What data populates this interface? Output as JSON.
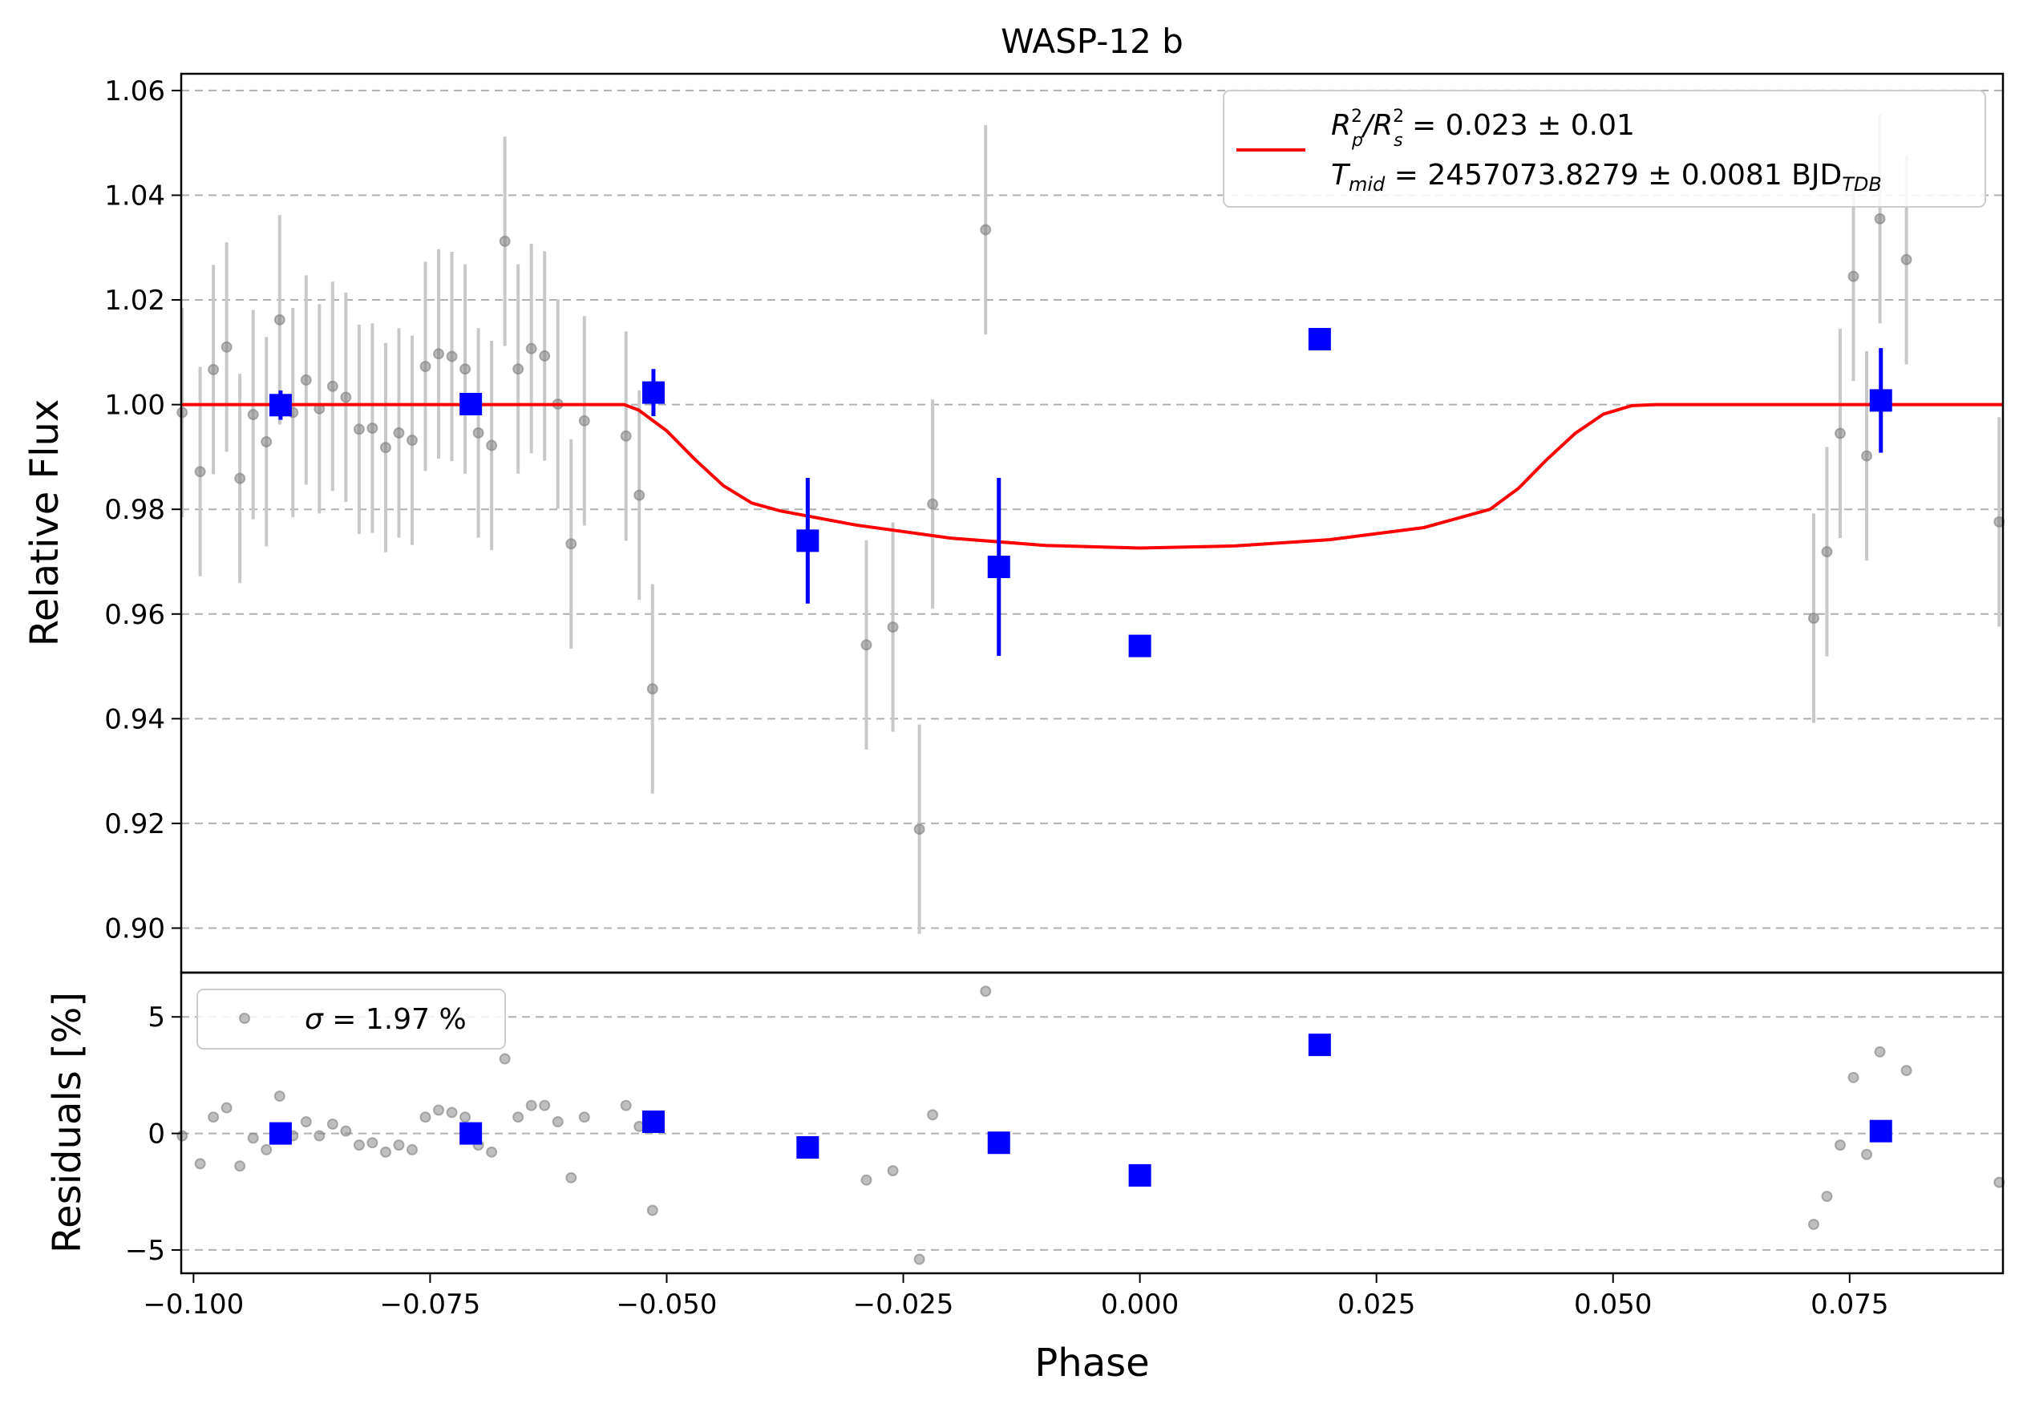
{
  "chart_data": [
    {
      "type": "scatter",
      "title": "WASP-12 b",
      "xlabel": "",
      "ylabel": "Relative Flux",
      "xlim": [
        -0.1013,
        0.0912
      ],
      "ylim": [
        0.8915,
        1.0632
      ],
      "yticks": [
        0.9,
        0.92,
        0.94,
        0.96,
        0.98,
        1.0,
        1.02,
        1.04,
        1.06
      ],
      "ytick_labels": [
        "0.90",
        "0.92",
        "0.94",
        "0.96",
        "0.98",
        "1.00",
        "1.02",
        "1.04",
        "1.06"
      ],
      "grid": "horizontal dashed",
      "legend_position": "upper-right",
      "legend": {
        "line1": {
          "a": "R",
          "a_sup": "2",
          "a_sub": "p",
          "b": "/R",
          "b_sup": "2",
          "b_sub": "s",
          "rest": " = 0.023 ± 0.01"
        },
        "line2": {
          "a": "T",
          "a_sub": "mid",
          "rest": " = 2457073.8279 ± 0.0081 BJD",
          "unit_sub": "TDB"
        }
      },
      "colors": {
        "raw": "#808080",
        "raw_err": "#c8c8c8",
        "binned": "#0000ff",
        "model": "#ff0000",
        "grid": "#b0b0b0"
      },
      "raw": [
        [
          -0.1012,
          0.9985,
          0.02
        ],
        [
          -0.0993,
          0.9872,
          0.02
        ],
        [
          -0.0979,
          1.0067,
          0.02
        ],
        [
          -0.0965,
          1.011,
          0.02
        ],
        [
          -0.0951,
          0.9859,
          0.02
        ],
        [
          -0.0937,
          0.9981,
          0.02
        ],
        [
          -0.0923,
          0.9929,
          0.02
        ],
        [
          -0.0909,
          1.0162,
          0.02
        ],
        [
          -0.0895,
          0.9985,
          0.02
        ],
        [
          -0.0881,
          1.0047,
          0.02
        ],
        [
          -0.0867,
          0.9992,
          0.02
        ],
        [
          -0.0853,
          1.0035,
          0.02
        ],
        [
          -0.0839,
          1.0014,
          0.02
        ],
        [
          -0.0825,
          0.9953,
          0.02
        ],
        [
          -0.0811,
          0.9955,
          0.02
        ],
        [
          -0.0797,
          0.9918,
          0.02
        ],
        [
          -0.0783,
          0.9946,
          0.02
        ],
        [
          -0.0769,
          0.9932,
          0.02
        ],
        [
          -0.0755,
          1.0073,
          0.02
        ],
        [
          -0.0741,
          1.0097,
          0.02
        ],
        [
          -0.0727,
          1.0092,
          0.02
        ],
        [
          -0.0713,
          1.0068,
          0.02
        ],
        [
          -0.0699,
          0.9946,
          0.02
        ],
        [
          -0.0685,
          0.9922,
          0.02
        ],
        [
          -0.0671,
          1.0312,
          0.02
        ],
        [
          -0.0657,
          1.0068,
          0.02
        ],
        [
          -0.0643,
          1.0107,
          0.02
        ],
        [
          -0.0629,
          1.0093,
          0.02
        ],
        [
          -0.0615,
          1.0001,
          0.02
        ],
        [
          -0.0601,
          0.9734,
          0.02
        ],
        [
          -0.0587,
          0.9969,
          0.02
        ],
        [
          -0.0543,
          0.994,
          0.02
        ],
        [
          -0.0529,
          0.9827,
          0.02
        ],
        [
          -0.0515,
          0.9457,
          0.02
        ],
        [
          -0.0289,
          0.9541,
          0.02
        ],
        [
          -0.0261,
          0.9575,
          0.02
        ],
        [
          -0.0233,
          0.9189,
          0.02
        ],
        [
          -0.0219,
          0.981,
          0.02
        ],
        [
          -0.0163,
          1.0334,
          0.02
        ],
        [
          0.0712,
          0.9592,
          0.02
        ],
        [
          0.0726,
          0.9719,
          0.02
        ],
        [
          0.074,
          0.9945,
          0.02
        ],
        [
          0.0754,
          1.0245,
          0.02
        ],
        [
          0.0768,
          0.9902,
          0.02
        ],
        [
          0.0782,
          1.0355,
          0.02
        ],
        [
          0.081,
          1.0277,
          0.02
        ],
        [
          0.0908,
          0.9776,
          0.02
        ]
      ],
      "binned": [
        [
          -0.0908,
          0.9999,
          0.0028
        ],
        [
          -0.0707,
          1.0001,
          0.0021
        ],
        [
          -0.0514,
          1.0023,
          0.0045
        ],
        [
          -0.0351,
          0.974,
          0.012
        ],
        [
          -0.0149,
          0.969,
          0.017
        ],
        [
          0.0,
          0.9539,
          0
        ],
        [
          0.019,
          1.0125,
          0
        ],
        [
          0.0783,
          1.0008,
          0.01
        ]
      ],
      "model": [
        [
          -0.1013,
          1.0
        ],
        [
          -0.0545,
          1.0
        ],
        [
          -0.053,
          0.999
        ],
        [
          -0.05,
          0.995
        ],
        [
          -0.047,
          0.9895
        ],
        [
          -0.044,
          0.9845
        ],
        [
          -0.041,
          0.9812
        ],
        [
          -0.038,
          0.9797
        ],
        [
          -0.03,
          0.977
        ],
        [
          -0.02,
          0.9745
        ],
        [
          -0.01,
          0.9731
        ],
        [
          0.0,
          0.9726
        ],
        [
          0.01,
          0.973
        ],
        [
          0.02,
          0.9742
        ],
        [
          0.03,
          0.9765
        ],
        [
          0.037,
          0.98
        ],
        [
          0.04,
          0.984
        ],
        [
          0.043,
          0.9895
        ],
        [
          0.046,
          0.9945
        ],
        [
          0.049,
          0.9982
        ],
        [
          0.052,
          0.9998
        ],
        [
          0.0545,
          1.0
        ],
        [
          0.0912,
          1.0
        ]
      ]
    },
    {
      "type": "scatter",
      "xlabel": "Phase",
      "ylabel": "Residuals [%]",
      "xlim": [
        -0.1013,
        0.0912
      ],
      "ylim": [
        -6.0,
        6.9
      ],
      "yticks": [
        -5,
        0,
        5
      ],
      "ytick_labels": [
        "−5",
        "0",
        "5"
      ],
      "xticks": [
        -0.1,
        -0.075,
        -0.05,
        -0.025,
        0.0,
        0.025,
        0.05,
        0.075
      ],
      "xtick_labels": [
        "−0.100",
        "−0.075",
        "−0.050",
        "−0.025",
        "0.000",
        "0.025",
        "0.050",
        "0.075"
      ],
      "grid": "horizontal dashed",
      "legend_position": "upper-left",
      "legend": {
        "sigma_symbol": "σ",
        "label": " = 1.97 %"
      },
      "raw": [
        [
          -0.1012,
          -0.1
        ],
        [
          -0.0993,
          -1.3
        ],
        [
          -0.0979,
          0.7
        ],
        [
          -0.0965,
          1.1
        ],
        [
          -0.0951,
          -1.4
        ],
        [
          -0.0937,
          -0.2
        ],
        [
          -0.0923,
          -0.7
        ],
        [
          -0.0909,
          1.6
        ],
        [
          -0.0895,
          -0.1
        ],
        [
          -0.0881,
          0.5
        ],
        [
          -0.0867,
          -0.1
        ],
        [
          -0.0853,
          0.4
        ],
        [
          -0.0839,
          0.1
        ],
        [
          -0.0825,
          -0.5
        ],
        [
          -0.0811,
          -0.4
        ],
        [
          -0.0797,
          -0.8
        ],
        [
          -0.0783,
          -0.5
        ],
        [
          -0.0769,
          -0.7
        ],
        [
          -0.0755,
          0.7
        ],
        [
          -0.0741,
          1.0
        ],
        [
          -0.0727,
          0.9
        ],
        [
          -0.0713,
          0.7
        ],
        [
          -0.0699,
          -0.5
        ],
        [
          -0.0685,
          -0.8
        ],
        [
          -0.0671,
          3.2
        ],
        [
          -0.0657,
          0.7
        ],
        [
          -0.0643,
          1.2
        ],
        [
          -0.0629,
          1.2
        ],
        [
          -0.0615,
          0.5
        ],
        [
          -0.0601,
          -1.9
        ],
        [
          -0.0587,
          0.7
        ],
        [
          -0.0543,
          1.2
        ],
        [
          -0.0529,
          0.3
        ],
        [
          -0.0515,
          -3.3
        ],
        [
          -0.0289,
          -2.0
        ],
        [
          -0.0261,
          -1.6
        ],
        [
          -0.0233,
          -5.4
        ],
        [
          -0.0219,
          0.8
        ],
        [
          -0.0163,
          6.1
        ],
        [
          0.0712,
          -3.9
        ],
        [
          0.0726,
          -2.7
        ],
        [
          0.074,
          -0.5
        ],
        [
          0.0754,
          2.4
        ],
        [
          0.0768,
          -0.9
        ],
        [
          0.0782,
          3.5
        ],
        [
          0.081,
          2.7
        ],
        [
          0.0908,
          -2.1
        ]
      ],
      "binned": [
        [
          -0.0908,
          0.0
        ],
        [
          -0.0707,
          0.0
        ],
        [
          -0.0514,
          0.5
        ],
        [
          -0.0351,
          -0.6
        ],
        [
          -0.0149,
          -0.4
        ],
        [
          0.0,
          -1.8
        ],
        [
          0.019,
          3.8
        ],
        [
          0.0783,
          0.1
        ]
      ]
    }
  ]
}
